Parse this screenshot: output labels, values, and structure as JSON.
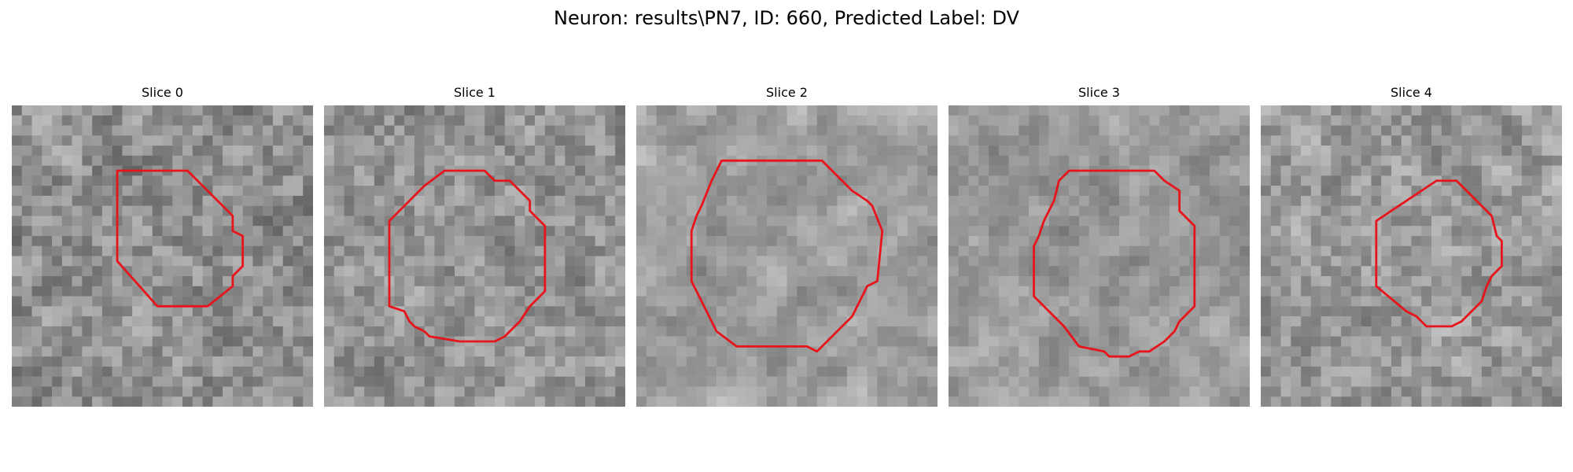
{
  "figure": {
    "title": "Neuron: results\\PN7, ID: 660, Predicted Label: DV"
  },
  "panels": [
    {
      "label": "Slice 0",
      "cell": "lower-left dark region",
      "contour_color": "#e8141b"
    },
    {
      "label": "Slice 1",
      "cell": "faint centered",
      "contour_color": "#e8141b"
    },
    {
      "label": "Slice 2",
      "cell": "large dark centered",
      "contour_color": "#e8141b"
    },
    {
      "label": "Slice 3",
      "cell": "large dark centered",
      "contour_color": "#e8141b"
    },
    {
      "label": "Slice 4",
      "cell": "lower-left dark region",
      "contour_color": "#e8141b"
    }
  ],
  "colors": {
    "background": "#ffffff",
    "contour": "#e8141b",
    "text": "#000000"
  }
}
